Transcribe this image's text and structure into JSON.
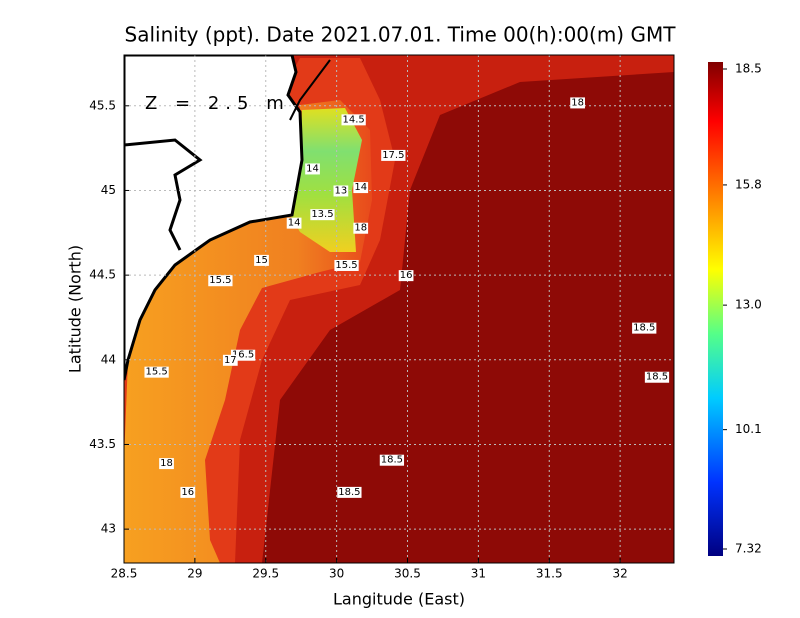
{
  "chart_data": {
    "type": "contour",
    "title": "Salinity (ppt). Date 2021.07.01. Time 00(h):00(m) GMT",
    "annotation": "Z = 2.5 m",
    "x_label": "Langitude (East)",
    "y_label": "Latitude (North)",
    "xlim": [
      28.5,
      32.38
    ],
    "ylim": [
      42.8,
      45.8
    ],
    "xticks": [
      28.5,
      29,
      29.5,
      30,
      30.5,
      31,
      31.5,
      32
    ],
    "yticks": [
      43,
      43.5,
      44,
      44.5,
      45,
      45.5
    ],
    "grid": true,
    "clim": [
      7.32,
      18.5
    ],
    "colorbar_ticks": [
      18.5,
      15.8,
      {
        "value": 13,
        "label": "13.0"
      },
      10.1,
      7.32
    ],
    "contour_labels": [
      {
        "value": 18,
        "x": 31.7,
        "y": 45.52
      },
      {
        "value": 14.5,
        "x": 30.12,
        "y": 45.42
      },
      {
        "value": 17.5,
        "x": 30.4,
        "y": 45.21
      },
      {
        "value": 14,
        "x": 29.83,
        "y": 45.13
      },
      {
        "value": 13,
        "x": 30.03,
        "y": 45.0
      },
      {
        "value": 14,
        "x": 30.17,
        "y": 45.02
      },
      {
        "value": 13.5,
        "x": 29.9,
        "y": 44.86
      },
      {
        "value": 14,
        "x": 29.7,
        "y": 44.81
      },
      {
        "value": 18,
        "x": 30.17,
        "y": 44.78
      },
      {
        "value": 15.5,
        "x": 30.07,
        "y": 44.56
      },
      {
        "value": 15,
        "x": 29.47,
        "y": 44.59
      },
      {
        "value": 16,
        "x": 30.49,
        "y": 44.5
      },
      {
        "value": 15.5,
        "x": 29.18,
        "y": 44.47
      },
      {
        "value": 18.5,
        "x": 32.17,
        "y": 44.19
      },
      {
        "value": 16.5,
        "x": 29.34,
        "y": 44.03
      },
      {
        "value": 17,
        "x": 29.25,
        "y": 44.0
      },
      {
        "value": 15.5,
        "x": 28.73,
        "y": 43.93
      },
      {
        "value": 18.5,
        "x": 32.26,
        "y": 43.9
      },
      {
        "value": 18.5,
        "x": 30.39,
        "y": 43.41
      },
      {
        "value": 18,
        "x": 28.8,
        "y": 43.39
      },
      {
        "value": 16,
        "x": 28.95,
        "y": 43.22
      },
      {
        "value": 18.5,
        "x": 30.09,
        "y": 43.22
      }
    ]
  }
}
